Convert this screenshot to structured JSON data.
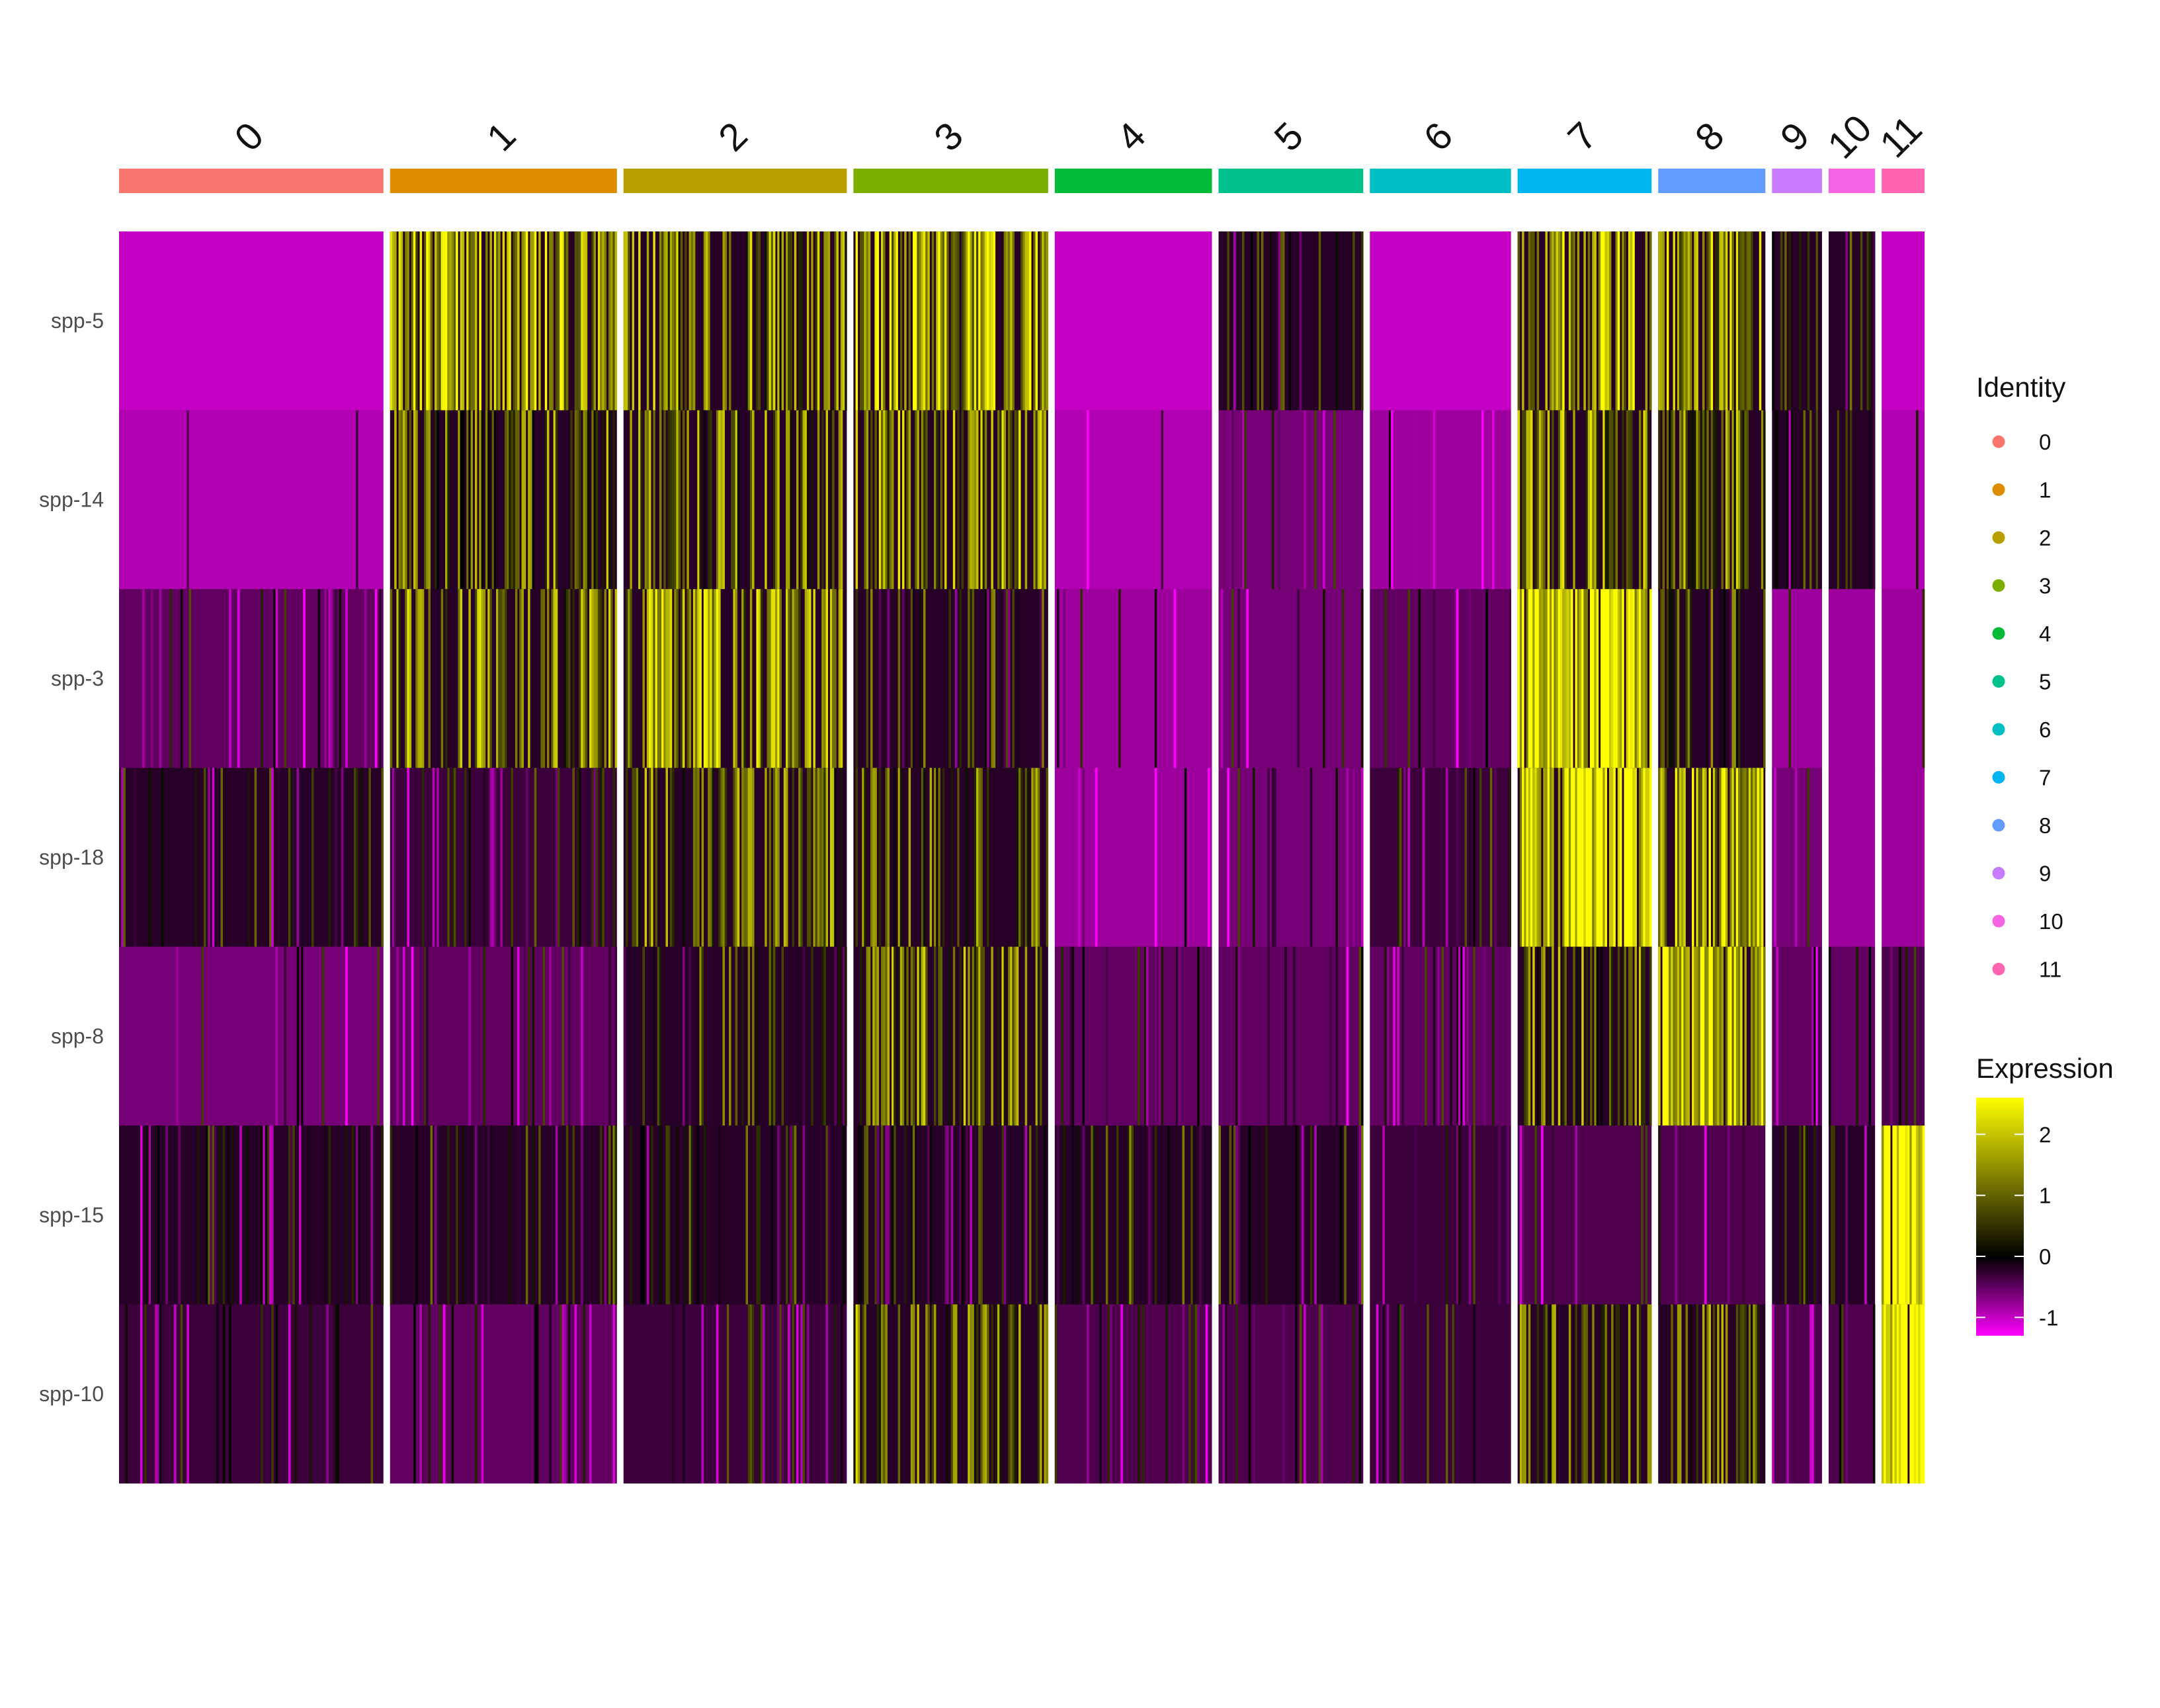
{
  "chart_data": {
    "type": "heatmap",
    "clusters": [
      "0",
      "1",
      "2",
      "3",
      "4",
      "5",
      "6",
      "7",
      "8",
      "9",
      "10",
      "11"
    ],
    "cluster_colors": [
      "#F8766D",
      "#DE8C00",
      "#B79F00",
      "#7CAE00",
      "#00BA38",
      "#00C08B",
      "#00BFC4",
      "#00B4F0",
      "#619CFF",
      "#C77CFF",
      "#F564E3",
      "#FF64B0"
    ],
    "cluster_cell_share": [
      0.148,
      0.127,
      0.125,
      0.109,
      0.088,
      0.081,
      0.079,
      0.075,
      0.06,
      0.028,
      0.026,
      0.024
    ],
    "genes": [
      "spp-5",
      "spp-14",
      "spp-3",
      "spp-18",
      "spp-8",
      "spp-15",
      "spp-10"
    ],
    "mean_expression": [
      [
        -1.0,
        1.5,
        1.0,
        1.5,
        -1.0,
        0.0,
        -1.0,
        1.5,
        1.2,
        0.2,
        0.2,
        -1.0
      ],
      [
        -0.9,
        0.8,
        0.8,
        1.1,
        -0.9,
        -0.6,
        -0.8,
        1.1,
        0.9,
        -0.2,
        -0.2,
        -0.9
      ],
      [
        -0.5,
        1.0,
        1.2,
        0.1,
        -0.8,
        -0.6,
        -0.5,
        2.1,
        0.4,
        -0.8,
        -0.8,
        -0.8
      ],
      [
        -0.2,
        -0.3,
        0.8,
        0.6,
        -0.8,
        -0.6,
        -0.3,
        2.0,
        1.6,
        -0.6,
        -0.8,
        -0.8
      ],
      [
        -0.6,
        -0.5,
        0.2,
        0.9,
        -0.5,
        -0.5,
        -0.5,
        0.8,
        1.8,
        -0.5,
        -0.5,
        -0.4
      ],
      [
        -0.2,
        0.0,
        -0.1,
        -0.1,
        0.3,
        -0.1,
        -0.3,
        -0.4,
        -0.4,
        -0.2,
        -0.2,
        2.3
      ],
      [
        -0.3,
        -0.5,
        -0.3,
        1.0,
        -0.4,
        -0.4,
        -0.3,
        0.8,
        0.7,
        -0.4,
        -0.4,
        2.4
      ]
    ],
    "color_scale": {
      "low": "#FF00FF",
      "mid": "#000000",
      "high": "#FFFF00",
      "limits": [
        -1.3,
        2.6
      ]
    },
    "legend": {
      "identity_title": "Identity",
      "identity_labels": [
        "0",
        "1",
        "2",
        "3",
        "4",
        "5",
        "6",
        "7",
        "8",
        "9",
        "10",
        "11"
      ],
      "expression_title": "Expression",
      "expression_ticks": [
        2,
        1,
        0,
        -1
      ],
      "expression_tick_labels": [
        "2",
        "1",
        "0",
        "-1"
      ],
      "placement": "right"
    }
  }
}
